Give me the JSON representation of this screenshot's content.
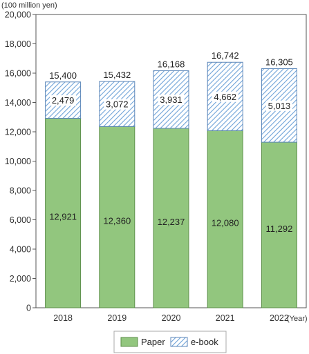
{
  "chart_data": {
    "type": "bar",
    "stacked": true,
    "unit_label": "(100 million yen)",
    "x_unit_label": "(Year)",
    "categories": [
      "2018",
      "2019",
      "2020",
      "2021",
      "2022"
    ],
    "series": [
      {
        "name": "Paper",
        "values": [
          12921,
          12360,
          12237,
          12080,
          11292
        ],
        "labels": [
          "12,921",
          "12,360",
          "12,237",
          "12,080",
          "11,292"
        ],
        "color": "#92c67e",
        "pattern": "solid"
      },
      {
        "name": "e-book",
        "values": [
          2479,
          3072,
          3931,
          4662,
          5013
        ],
        "labels": [
          "2,479",
          "3,072",
          "3,931",
          "4,662",
          "5,013"
        ],
        "color": "#6fa3d8",
        "pattern": "diagonal-hatch"
      }
    ],
    "totals": [
      15400,
      15432,
      16168,
      16742,
      16305
    ],
    "total_labels": [
      "15,400",
      "15,432",
      "16,168",
      "16,742",
      "16,305"
    ],
    "ylim": [
      0,
      20000
    ],
    "y_ticks": [
      0,
      2000,
      4000,
      6000,
      8000,
      10000,
      12000,
      14000,
      16000,
      18000,
      20000
    ],
    "y_tick_labels": [
      "0",
      "2,000",
      "4,000",
      "6,000",
      "8,000",
      "10,000",
      "12,000",
      "14,000",
      "16,000",
      "18,000",
      "20,000"
    ],
    "grid": false,
    "legend_position": "bottom-center"
  }
}
